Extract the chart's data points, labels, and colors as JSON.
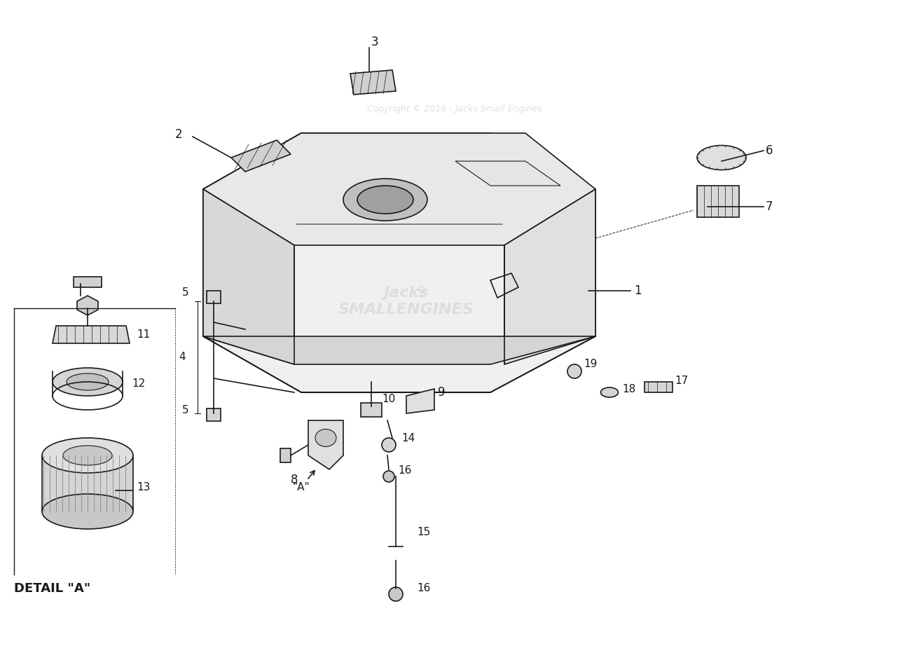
{
  "title": "",
  "background_color": "#ffffff",
  "line_color": "#1a1a1a",
  "text_color": "#1a1a1a",
  "watermark": "Copyright © 2016 - Jacks Small Engines",
  "watermark_color": "#cccccc",
  "detail_label": "DETAIL \"A\"",
  "part_numbers": [
    "1",
    "2",
    "3",
    "4",
    "5",
    "5",
    "6",
    "7",
    "8",
    "9",
    "10",
    "11",
    "12",
    "13",
    "14",
    "15",
    "16",
    "16",
    "17",
    "18",
    "19",
    "\"A\""
  ],
  "fig_width": 12.99,
  "fig_height": 9.42
}
